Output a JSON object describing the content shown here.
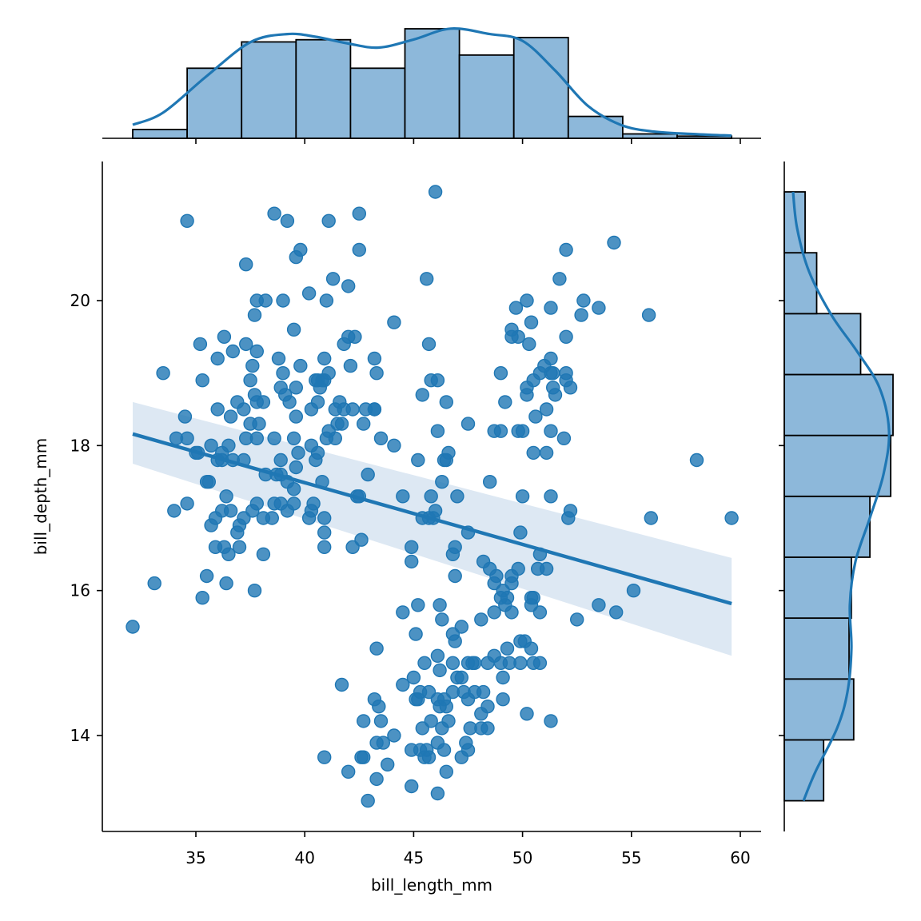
{
  "chart_data": {
    "type": "scatter",
    "subtype": "jointplot_with_regression",
    "title": "",
    "xlabel": "bill_length_mm",
    "ylabel": "bill_depth_mm",
    "xlim": [
      30.6,
      60.9
    ],
    "ylim": [
      12.6,
      21.8
    ],
    "x_ticks": [
      35,
      40,
      45,
      50,
      55,
      60
    ],
    "y_ticks": [
      14,
      16,
      18,
      20
    ],
    "grid": false,
    "legend": null,
    "colors": {
      "points": "#1f77b4",
      "regression_line": "#1f77b4",
      "confidence_band": "#dde8f3",
      "hist_fill": "#8db8da",
      "hist_edge": "#000000",
      "kde": "#1f77b4"
    },
    "regression": {
      "x_start": 32.1,
      "y_start": 18.16,
      "x_end": 59.6,
      "y_end": 15.82,
      "ci_upper_start": 18.6,
      "ci_lower_start": 17.75,
      "ci_upper_end": 16.45,
      "ci_lower_end": 15.1
    },
    "points": [
      [
        46.0,
        21.5
      ],
      [
        34.6,
        21.1
      ],
      [
        38.6,
        21.2
      ],
      [
        39.2,
        21.1
      ],
      [
        41.1,
        21.1
      ],
      [
        42.5,
        21.2
      ],
      [
        39.8,
        20.7
      ],
      [
        39.6,
        20.6
      ],
      [
        42.5,
        20.7
      ],
      [
        37.3,
        20.5
      ],
      [
        41.3,
        20.3
      ],
      [
        42.0,
        20.2
      ],
      [
        40.2,
        20.1
      ],
      [
        37.8,
        20.0
      ],
      [
        38.2,
        20.0
      ],
      [
        39.0,
        20.0
      ],
      [
        41.0,
        20.0
      ],
      [
        37.7,
        19.8
      ],
      [
        39.5,
        19.6
      ],
      [
        45.6,
        20.3
      ],
      [
        44.1,
        19.7
      ],
      [
        35.2,
        19.4
      ],
      [
        36.3,
        19.5
      ],
      [
        36.0,
        19.2
      ],
      [
        37.3,
        19.4
      ],
      [
        37.6,
        19.1
      ],
      [
        37.8,
        19.3
      ],
      [
        36.7,
        19.3
      ],
      [
        38.8,
        19.2
      ],
      [
        40.9,
        19.2
      ],
      [
        41.8,
        19.4
      ],
      [
        42.0,
        19.5
      ],
      [
        42.3,
        19.5
      ],
      [
        43.2,
        19.2
      ],
      [
        45.7,
        19.4
      ],
      [
        33.5,
        19.0
      ],
      [
        35.3,
        18.9
      ],
      [
        37.2,
        18.5
      ],
      [
        37.7,
        18.7
      ],
      [
        37.5,
        18.9
      ],
      [
        39.0,
        19.0
      ],
      [
        39.6,
        18.8
      ],
      [
        39.8,
        19.1
      ],
      [
        40.6,
        18.9
      ],
      [
        40.9,
        18.9
      ],
      [
        40.3,
        18.5
      ],
      [
        40.8,
        18.9
      ],
      [
        41.1,
        19.0
      ],
      [
        40.7,
        18.8
      ],
      [
        41.4,
        18.5
      ],
      [
        41.5,
        18.3
      ],
      [
        42.1,
        19.1
      ],
      [
        43.2,
        18.5
      ],
      [
        43.3,
        19.0
      ],
      [
        45.8,
        18.9
      ],
      [
        46.1,
        18.9
      ],
      [
        34.5,
        18.4
      ],
      [
        36.0,
        18.5
      ],
      [
        36.6,
        18.4
      ],
      [
        36.9,
        18.6
      ],
      [
        37.8,
        18.6
      ],
      [
        38.1,
        18.6
      ],
      [
        38.9,
        18.8
      ],
      [
        39.3,
        18.6
      ],
      [
        39.1,
        18.7
      ],
      [
        39.6,
        18.4
      ],
      [
        40.6,
        18.6
      ],
      [
        40.5,
        18.9
      ],
      [
        41.6,
        18.6
      ],
      [
        41.8,
        18.5
      ],
      [
        42.2,
        18.5
      ],
      [
        42.8,
        18.5
      ],
      [
        43.2,
        18.5
      ],
      [
        42.7,
        18.3
      ],
      [
        37.9,
        18.3
      ],
      [
        41.1,
        18.2
      ],
      [
        41.0,
        18.1
      ],
      [
        41.7,
        18.3
      ],
      [
        43.5,
        18.1
      ],
      [
        44.1,
        18.0
      ],
      [
        46.1,
        18.2
      ],
      [
        46.5,
        18.6
      ],
      [
        45.4,
        18.7
      ],
      [
        47.5,
        18.3
      ],
      [
        34.1,
        18.1
      ],
      [
        34.6,
        18.1
      ],
      [
        35.7,
        18.0
      ],
      [
        36.2,
        17.8
      ],
      [
        36.5,
        18.0
      ],
      [
        37.3,
        18.1
      ],
      [
        37.8,
        18.1
      ],
      [
        38.6,
        18.1
      ],
      [
        38.2,
        17.6
      ],
      [
        38.9,
        17.8
      ],
      [
        39.5,
        18.1
      ],
      [
        39.6,
        17.7
      ],
      [
        40.3,
        18.0
      ],
      [
        40.6,
        17.9
      ],
      [
        41.4,
        18.1
      ],
      [
        35.0,
        17.9
      ],
      [
        35.1,
        17.9
      ],
      [
        36.0,
        17.8
      ],
      [
        36.2,
        17.9
      ],
      [
        36.7,
        17.8
      ],
      [
        37.2,
        17.8
      ],
      [
        37.5,
        18.3
      ],
      [
        38.9,
        17.6
      ],
      [
        39.7,
        17.9
      ],
      [
        40.5,
        17.8
      ],
      [
        45.2,
        17.8
      ],
      [
        46.4,
        17.8
      ],
      [
        46.6,
        17.9
      ],
      [
        46.5,
        17.8
      ],
      [
        42.9,
        17.6
      ],
      [
        35.5,
        17.5
      ],
      [
        35.6,
        17.5
      ],
      [
        38.7,
        17.6
      ],
      [
        39.2,
        17.5
      ],
      [
        39.5,
        17.4
      ],
      [
        40.8,
        17.5
      ],
      [
        42.4,
        17.3
      ],
      [
        42.5,
        17.3
      ],
      [
        44.5,
        17.3
      ],
      [
        46.3,
        17.5
      ],
      [
        45.8,
        17.3
      ],
      [
        47.0,
        17.3
      ],
      [
        48.5,
        17.5
      ],
      [
        50.0,
        17.3
      ],
      [
        51.3,
        17.3
      ],
      [
        36.4,
        17.3
      ],
      [
        36.2,
        17.1
      ],
      [
        36.6,
        17.1
      ],
      [
        34.0,
        17.1
      ],
      [
        34.6,
        17.2
      ],
      [
        37.8,
        17.2
      ],
      [
        38.6,
        17.2
      ],
      [
        38.9,
        17.2
      ],
      [
        39.5,
        17.2
      ],
      [
        40.4,
        17.2
      ],
      [
        37.0,
        16.9
      ],
      [
        37.2,
        17.0
      ],
      [
        37.6,
        17.1
      ],
      [
        38.1,
        17.0
      ],
      [
        38.5,
        17.0
      ],
      [
        39.2,
        17.1
      ],
      [
        40.2,
        17.0
      ],
      [
        40.3,
        17.1
      ],
      [
        40.9,
        17.0
      ],
      [
        45.4,
        17.0
      ],
      [
        46.0,
        17.1
      ],
      [
        45.7,
        17.0
      ],
      [
        45.9,
        17.0
      ],
      [
        50.7,
        16.3
      ],
      [
        35.7,
        16.9
      ],
      [
        35.9,
        17.0
      ],
      [
        37.0,
        16.6
      ],
      [
        36.9,
        16.8
      ],
      [
        36.3,
        16.6
      ],
      [
        35.9,
        16.6
      ],
      [
        38.1,
        16.5
      ],
      [
        40.9,
        16.6
      ],
      [
        40.9,
        16.8
      ],
      [
        42.2,
        16.6
      ],
      [
        42.6,
        16.7
      ],
      [
        36.5,
        16.5
      ],
      [
        44.9,
        16.6
      ],
      [
        44.9,
        16.4
      ],
      [
        46.8,
        16.5
      ],
      [
        46.9,
        16.6
      ],
      [
        47.5,
        16.8
      ],
      [
        49.9,
        16.8
      ],
      [
        52.1,
        17.0
      ],
      [
        52.2,
        17.1
      ],
      [
        55.9,
        17.0
      ],
      [
        59.6,
        17.0
      ],
      [
        58.0,
        17.8
      ],
      [
        55.8,
        19.8
      ],
      [
        54.2,
        20.8
      ],
      [
        35.5,
        16.2
      ],
      [
        36.4,
        16.1
      ],
      [
        33.1,
        16.1
      ],
      [
        35.3,
        15.9
      ],
      [
        37.7,
        16.0
      ],
      [
        32.1,
        15.5
      ],
      [
        48.2,
        16.4
      ],
      [
        48.5,
        16.3
      ],
      [
        48.7,
        16.1
      ],
      [
        49.1,
        16.0
      ],
      [
        49.5,
        16.2
      ],
      [
        48.8,
        16.2
      ],
      [
        49.3,
        15.9
      ],
      [
        49.5,
        16.1
      ],
      [
        49.8,
        16.3
      ],
      [
        50.5,
        15.9
      ],
      [
        50.4,
        15.9
      ],
      [
        50.8,
        16.5
      ],
      [
        51.1,
        16.3
      ],
      [
        49.0,
        15.9
      ],
      [
        49.2,
        15.8
      ],
      [
        48.1,
        15.6
      ],
      [
        48.7,
        15.7
      ],
      [
        50.4,
        15.8
      ],
      [
        50.8,
        15.7
      ],
      [
        49.5,
        15.7
      ],
      [
        52.5,
        15.6
      ],
      [
        53.5,
        15.8
      ],
      [
        54.3,
        15.7
      ],
      [
        55.1,
        16.0
      ],
      [
        46.9,
        16.2
      ],
      [
        45.1,
        15.4
      ],
      [
        44.5,
        15.7
      ],
      [
        45.2,
        15.8
      ],
      [
        46.2,
        15.8
      ],
      [
        46.3,
        15.6
      ],
      [
        46.8,
        15.4
      ],
      [
        47.2,
        15.5
      ],
      [
        46.9,
        15.3
      ],
      [
        47.5,
        15.0
      ],
      [
        47.8,
        15.0
      ],
      [
        47.7,
        15.0
      ],
      [
        48.4,
        15.0
      ],
      [
        48.7,
        15.1
      ],
      [
        49.3,
        15.2
      ],
      [
        49.9,
        15.3
      ],
      [
        50.1,
        15.3
      ],
      [
        50.4,
        15.2
      ],
      [
        49.0,
        15.0
      ],
      [
        49.4,
        15.0
      ],
      [
        49.9,
        15.0
      ],
      [
        50.5,
        15.0
      ],
      [
        50.8,
        15.0
      ],
      [
        49.1,
        14.8
      ],
      [
        43.3,
        15.2
      ],
      [
        41.7,
        14.7
      ],
      [
        43.2,
        14.5
      ],
      [
        43.4,
        14.4
      ],
      [
        44.5,
        14.7
      ],
      [
        45.0,
        14.8
      ],
      [
        45.1,
        14.5
      ],
      [
        45.3,
        14.6
      ],
      [
        45.2,
        14.5
      ],
      [
        45.7,
        14.6
      ],
      [
        46.1,
        14.5
      ],
      [
        46.2,
        14.4
      ],
      [
        46.4,
        14.5
      ],
      [
        46.5,
        14.4
      ],
      [
        46.8,
        14.6
      ],
      [
        47.3,
        14.6
      ],
      [
        47.5,
        14.5
      ],
      [
        47.0,
        14.8
      ],
      [
        47.2,
        14.8
      ],
      [
        46.2,
        14.9
      ],
      [
        45.5,
        15.0
      ],
      [
        46.1,
        15.1
      ],
      [
        46.8,
        15.0
      ],
      [
        47.8,
        14.6
      ],
      [
        48.2,
        14.6
      ],
      [
        49.1,
        14.5
      ],
      [
        48.4,
        14.4
      ],
      [
        48.1,
        14.3
      ],
      [
        50.2,
        14.3
      ],
      [
        51.3,
        14.2
      ],
      [
        42.7,
        14.2
      ],
      [
        43.5,
        14.2
      ],
      [
        44.1,
        14.0
      ],
      [
        45.4,
        14.1
      ],
      [
        45.8,
        14.2
      ],
      [
        46.3,
        14.1
      ],
      [
        46.6,
        14.2
      ],
      [
        47.6,
        14.1
      ],
      [
        48.1,
        14.1
      ],
      [
        48.4,
        14.1
      ],
      [
        43.3,
        13.9
      ],
      [
        43.6,
        13.9
      ],
      [
        45.3,
        13.8
      ],
      [
        45.7,
        13.7
      ],
      [
        46.1,
        13.9
      ],
      [
        47.2,
        13.7
      ],
      [
        47.4,
        13.9
      ],
      [
        47.5,
        13.8
      ],
      [
        40.9,
        13.7
      ],
      [
        42.6,
        13.7
      ],
      [
        42.7,
        13.7
      ],
      [
        43.3,
        13.4
      ],
      [
        43.8,
        13.6
      ],
      [
        44.9,
        13.8
      ],
      [
        45.6,
        13.8
      ],
      [
        46.4,
        13.8
      ],
      [
        45.5,
        13.7
      ],
      [
        42.0,
        13.5
      ],
      [
        46.5,
        13.5
      ],
      [
        44.9,
        13.3
      ],
      [
        46.1,
        13.2
      ],
      [
        42.9,
        13.1
      ],
      [
        49.5,
        19.5
      ],
      [
        49.5,
        19.6
      ],
      [
        49.8,
        19.5
      ],
      [
        50.4,
        19.7
      ],
      [
        50.3,
        19.4
      ],
      [
        49.8,
        18.2
      ],
      [
        50.2,
        18.7
      ],
      [
        50.5,
        18.9
      ],
      [
        50.8,
        19.0
      ],
      [
        51.0,
        19.1
      ],
      [
        51.3,
        19.0
      ],
      [
        51.4,
        18.8
      ],
      [
        51.3,
        19.9
      ],
      [
        50.2,
        20.0
      ],
      [
        49.7,
        19.9
      ],
      [
        52.0,
        20.7
      ],
      [
        51.7,
        20.3
      ],
      [
        52.7,
        19.8
      ],
      [
        52.8,
        20.0
      ],
      [
        53.5,
        19.9
      ],
      [
        49.0,
        19.0
      ],
      [
        49.2,
        18.6
      ],
      [
        50.2,
        18.8
      ],
      [
        50.6,
        18.4
      ],
      [
        51.1,
        18.5
      ],
      [
        51.5,
        18.7
      ],
      [
        52.0,
        18.9
      ],
      [
        52.2,
        18.8
      ],
      [
        52.0,
        19.5
      ],
      [
        51.3,
        19.2
      ],
      [
        51.4,
        19.0
      ],
      [
        49.0,
        18.2
      ],
      [
        50.0,
        18.2
      ],
      [
        50.5,
        17.9
      ],
      [
        51.9,
        18.1
      ],
      [
        51.3,
        18.2
      ],
      [
        52.0,
        19.0
      ],
      [
        51.1,
        17.9
      ],
      [
        48.7,
        18.2
      ]
    ],
    "top_histogram": {
      "bin_edges": [
        32.1,
        34.6,
        37.1,
        39.6,
        42.1,
        44.6,
        47.1,
        49.6,
        52.1,
        54.6,
        57.1,
        59.6
      ],
      "counts": [
        4,
        32,
        44,
        45,
        32,
        50,
        38,
        46,
        10,
        2,
        1
      ]
    },
    "right_histogram": {
      "bin_edges": [
        13.1,
        13.94,
        14.78,
        15.62,
        16.46,
        17.3,
        18.14,
        18.98,
        19.82,
        20.66,
        21.5
      ],
      "counts": [
        17,
        30,
        28,
        29,
        37,
        46,
        47,
        33,
        14,
        9
      ]
    }
  }
}
